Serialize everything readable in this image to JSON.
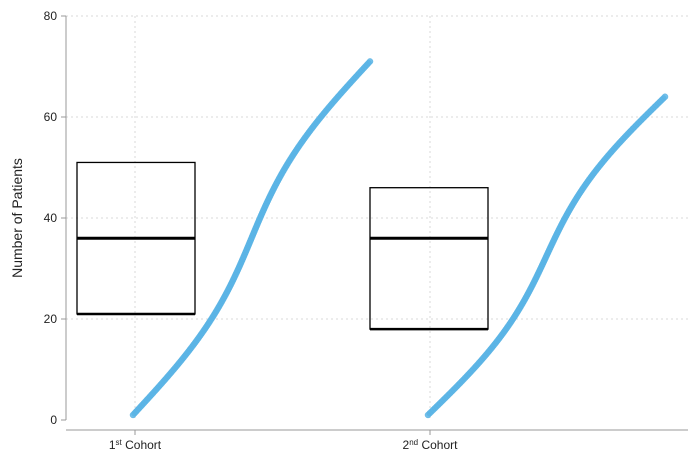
{
  "chart_data": {
    "type": "scatter",
    "ylabel": "Number of Patients",
    "xlabel": "",
    "ylim": [
      0,
      80
    ],
    "yticks": [
      0,
      20,
      40,
      60,
      80
    ],
    "grid": true,
    "colors": {
      "points": "#5ab4e5",
      "box": "#000000",
      "grid": "#d9d9d9",
      "axis": "#999999"
    },
    "categories": [
      {
        "label_main": "1",
        "label_sup": "st",
        "label_rest": " Cohort"
      },
      {
        "label_main": "2",
        "label_sup": "nd",
        "label_rest": " Cohort"
      }
    ],
    "boxes": [
      {
        "category": "1st Cohort",
        "q1": 21,
        "median": 36,
        "q3": 51
      },
      {
        "category": "2nd Cohort",
        "q1": 18,
        "median": 36,
        "q3": 46
      }
    ],
    "series": [
      {
        "category": "1st Cohort",
        "count_range": [
          1,
          71
        ]
      },
      {
        "category": "2nd Cohort",
        "count_range": [
          1,
          64
        ]
      }
    ]
  }
}
